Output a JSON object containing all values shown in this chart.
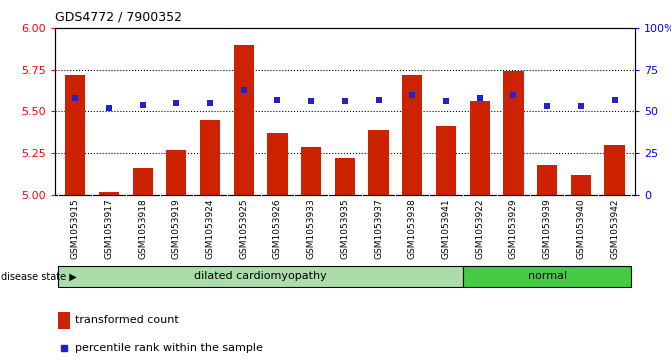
{
  "title": "GDS4772 / 7900352",
  "samples": [
    "GSM1053915",
    "GSM1053917",
    "GSM1053918",
    "GSM1053919",
    "GSM1053924",
    "GSM1053925",
    "GSM1053926",
    "GSM1053933",
    "GSM1053935",
    "GSM1053937",
    "GSM1053938",
    "GSM1053941",
    "GSM1053922",
    "GSM1053929",
    "GSM1053939",
    "GSM1053940",
    "GSM1053942"
  ],
  "transformed_count": [
    5.72,
    5.02,
    5.16,
    5.27,
    5.45,
    5.9,
    5.37,
    5.29,
    5.22,
    5.39,
    5.72,
    5.41,
    5.56,
    5.74,
    5.18,
    5.12,
    5.3
  ],
  "percentile_rank": [
    58,
    52,
    54,
    55,
    55,
    63,
    57,
    56,
    56,
    57,
    60,
    56,
    58,
    60,
    53,
    53,
    57
  ],
  "disease_state": [
    "dilated cardiomyopathy",
    "dilated cardiomyopathy",
    "dilated cardiomyopathy",
    "dilated cardiomyopathy",
    "dilated cardiomyopathy",
    "dilated cardiomyopathy",
    "dilated cardiomyopathy",
    "dilated cardiomyopathy",
    "dilated cardiomyopathy",
    "dilated cardiomyopathy",
    "dilated cardiomyopathy",
    "dilated cardiomyopathy",
    "normal",
    "normal",
    "normal",
    "normal",
    "normal"
  ],
  "ylim_left": [
    5.0,
    6.0
  ],
  "ylim_right": [
    0,
    100
  ],
  "yticks_left": [
    5.0,
    5.25,
    5.5,
    5.75,
    6.0
  ],
  "yticks_right": [
    0,
    25,
    50,
    75,
    100
  ],
  "bar_color": "#cc2200",
  "dot_color": "#2222cc",
  "bg_color": "#cccccc",
  "dilated_color": "#aaddaa",
  "normal_color": "#44cc44",
  "legend_bar_label": "transformed count",
  "legend_dot_label": "percentile rank within the sample",
  "disease_label": "disease state",
  "dilated_label": "dilated cardiomyopathy",
  "normal_label": "normal"
}
